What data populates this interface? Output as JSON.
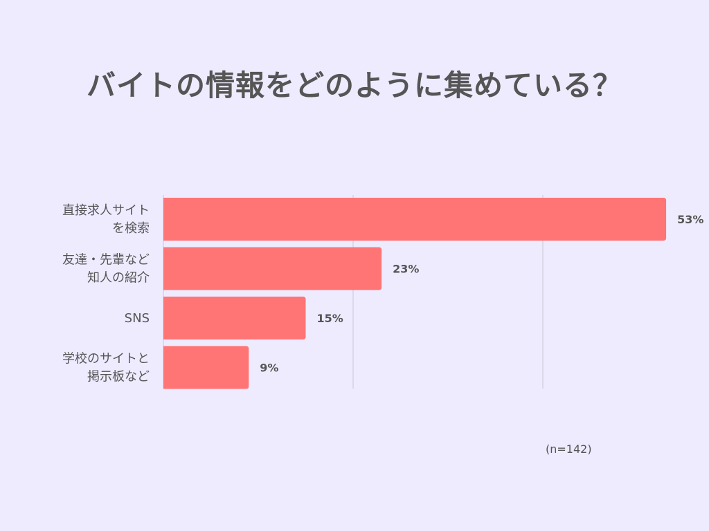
{
  "title": "バイトの情報をどのように集めている？",
  "sample_note": "(n=142)",
  "colors": {
    "background": "#eeebff",
    "bar": "#ff7474",
    "gridline": "#c8c6d4",
    "text": "#555555"
  },
  "chart_data": {
    "type": "bar",
    "orientation": "horizontal",
    "categories": [
      [
        "直接求人サイト",
        "を検索"
      ],
      [
        "友達・先輩など",
        "知人の紹介"
      ],
      [
        "SNS"
      ],
      [
        "学校のサイトと",
        "掲示板など"
      ]
    ],
    "values": [
      53,
      23,
      15,
      9
    ],
    "value_labels": [
      "53%",
      "23%",
      "15%",
      "9%"
    ],
    "unit": "%",
    "xlim": [
      0,
      60
    ],
    "grid": true,
    "legend": "none"
  }
}
